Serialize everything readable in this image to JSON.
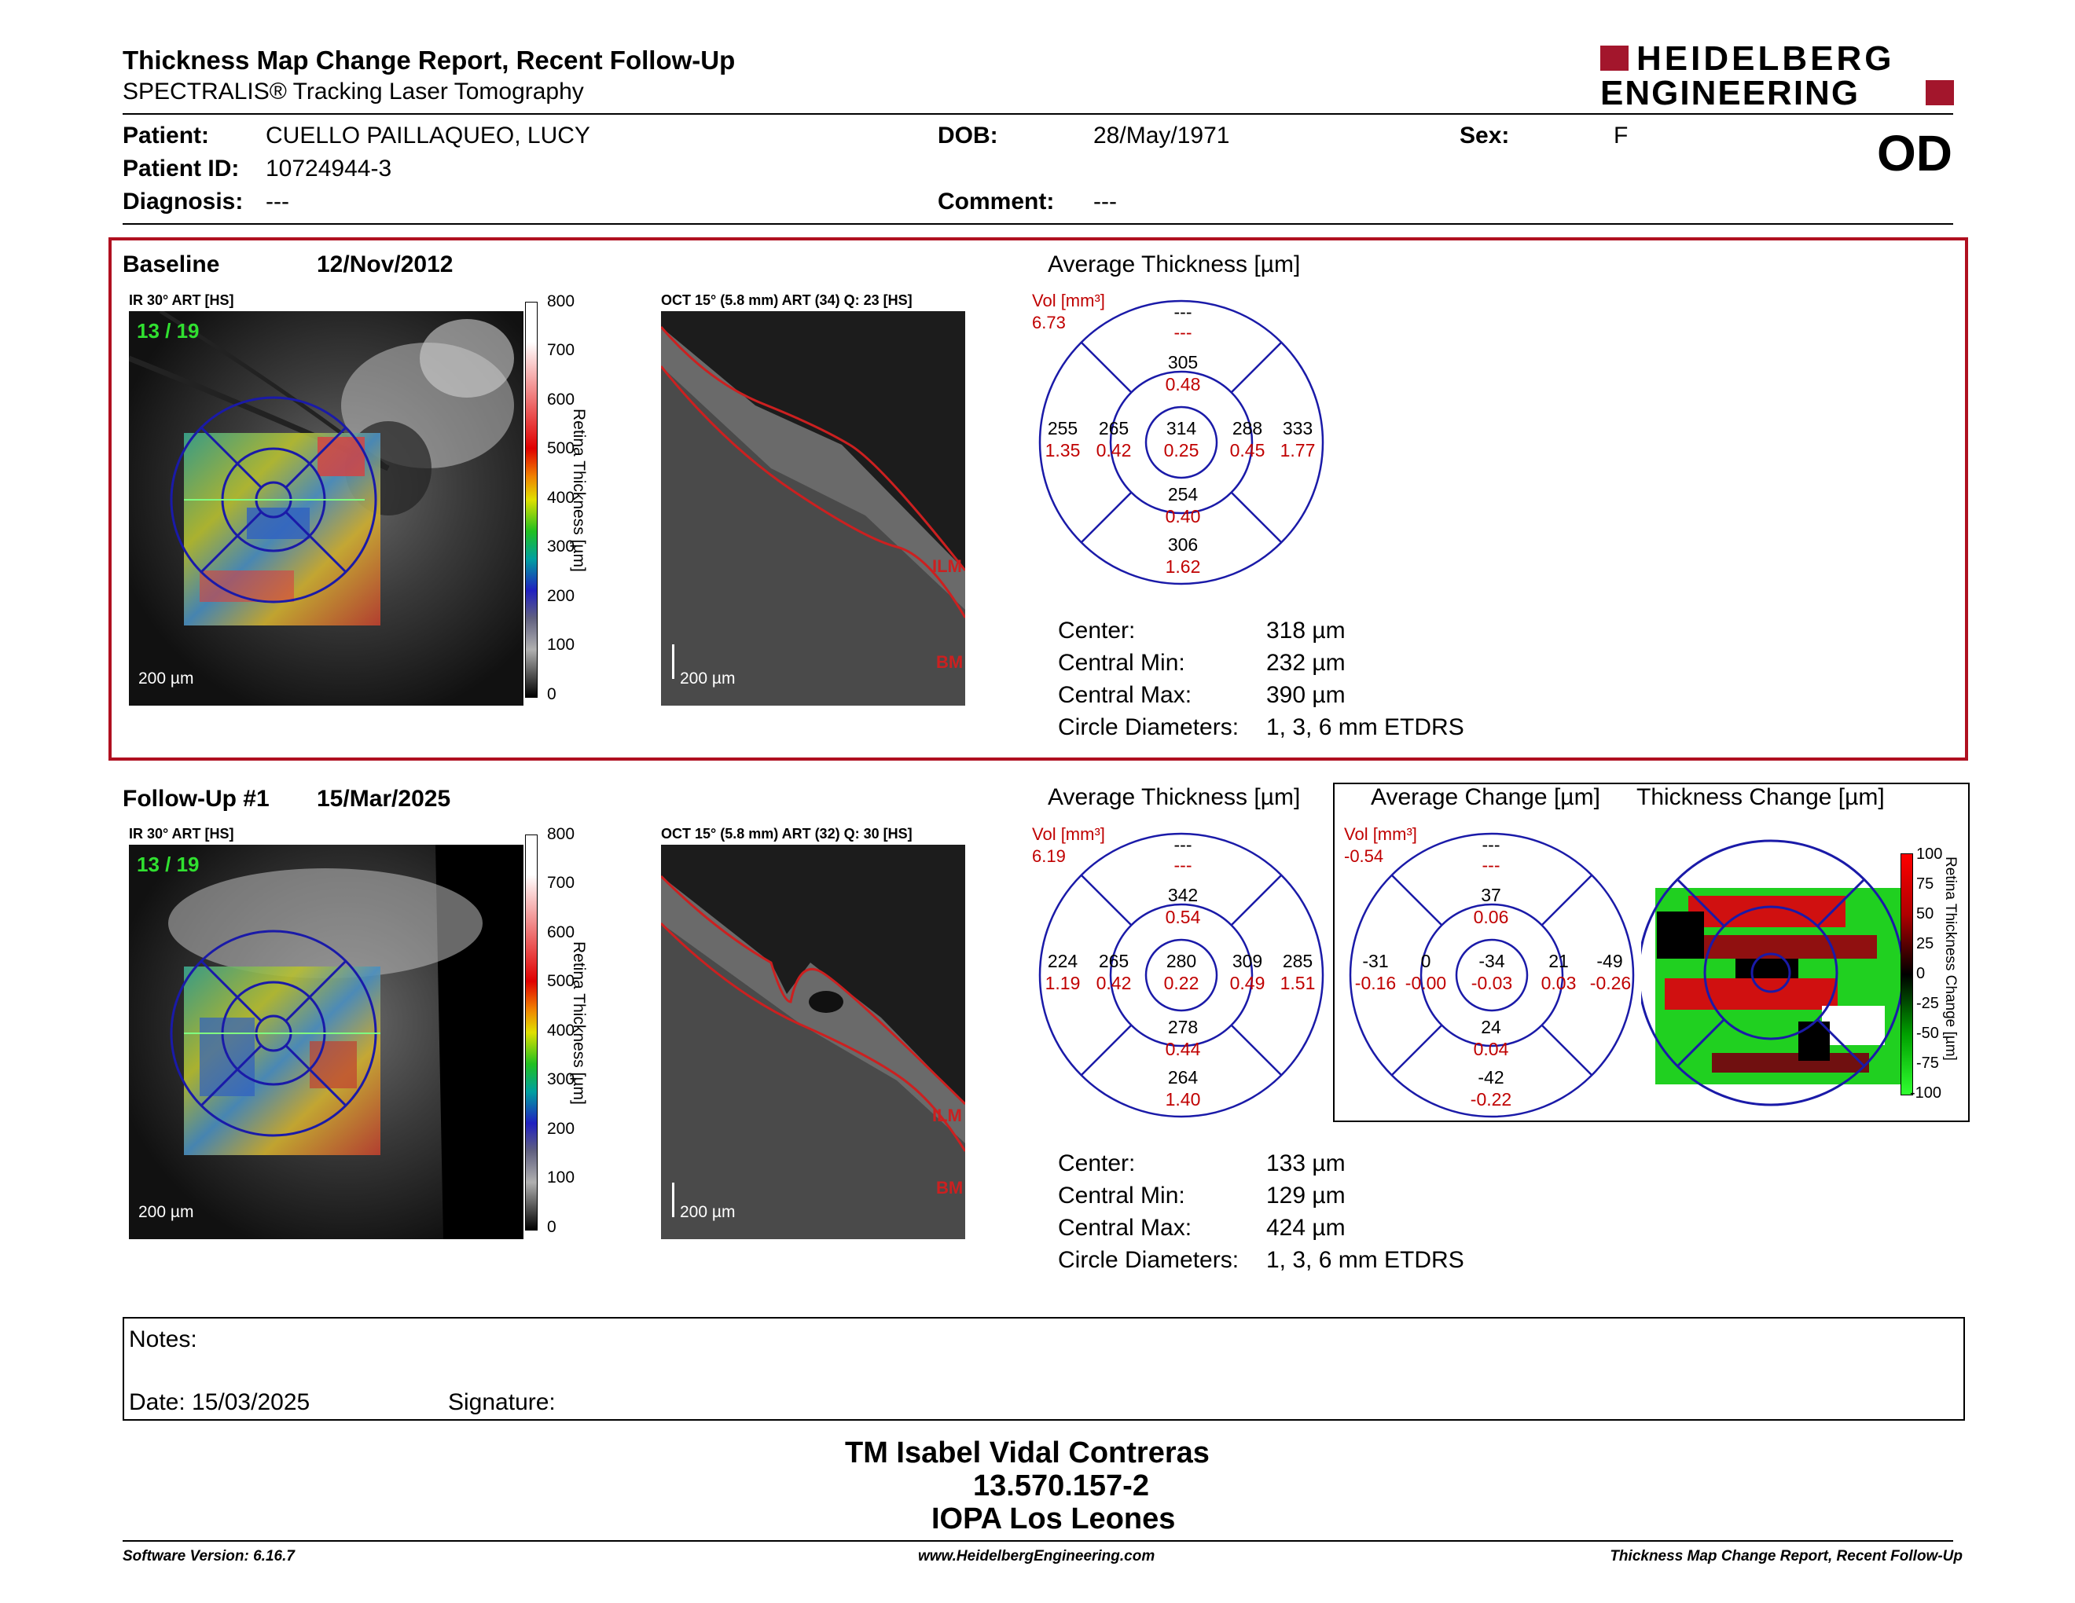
{
  "header": {
    "title": "Thickness Map Change Report, Recent Follow-Up",
    "subtitle": "SPECTRALIS® Tracking Laser Tomography",
    "logo_line1": "HEIDELBERG",
    "logo_line2": "ENGINEERING",
    "eye": "OD"
  },
  "patient": {
    "patient_label": "Patient:",
    "patient_value": "CUELLO PAILLAQUEO, LUCY",
    "id_label": "Patient ID:",
    "id_value": "10724944-3",
    "diag_label": "Diagnosis:",
    "diag_value": "---",
    "dob_label": "DOB:",
    "dob_value": "28/May/1971",
    "comment_label": "Comment:",
    "comment_value": "---",
    "sex_label": "Sex:",
    "sex_value": "F"
  },
  "baseline": {
    "label": "Baseline",
    "date": "12/Nov/2012",
    "ir_title": "IR 30° ART [HS]",
    "ir_counter": "13 / 19",
    "ir_scale": "200 µm",
    "oct_title": "OCT 15° (5.8 mm) ART (34) Q: 23 [HS]",
    "oct_scale": "200 µm",
    "avg_title": "Average Thickness [µm]",
    "vol_label": "Vol [mm³]",
    "vol_value": "6.73",
    "etdrs": {
      "top_outer": [
        "---",
        "---"
      ],
      "top_inner": [
        "305",
        "0.48"
      ],
      "left_outer": [
        "255",
        "1.35"
      ],
      "left_inner": [
        "265",
        "0.42"
      ],
      "center": [
        "314",
        "0.25"
      ],
      "right_inner": [
        "288",
        "0.45"
      ],
      "right_outer": [
        "333",
        "1.77"
      ],
      "bottom_inner": [
        "254",
        "0.40"
      ],
      "bottom_outer": [
        "306",
        "1.62"
      ]
    },
    "stats": [
      {
        "label": "Center:",
        "value": "318 µm"
      },
      {
        "label": "Central Min:",
        "value": "232 µm"
      },
      {
        "label": "Central Max:",
        "value": "390 µm"
      },
      {
        "label": "Circle Diameters:",
        "value": "1, 3, 6 mm ETDRS"
      }
    ]
  },
  "followup": {
    "label": "Follow-Up #1",
    "date": "15/Mar/2025",
    "ir_title": "IR 30° ART [HS]",
    "ir_counter": "13 / 19",
    "ir_scale": "200 µm",
    "oct_title": "OCT 15° (5.8 mm) ART (32) Q: 30 [HS]",
    "oct_scale": "200 µm",
    "avg_title": "Average Thickness [µm]",
    "vol_label": "Vol [mm³]",
    "vol_value": "6.19",
    "etdrs": {
      "top_outer": [
        "---",
        "---"
      ],
      "top_inner": [
        "342",
        "0.54"
      ],
      "left_outer": [
        "224",
        "1.19"
      ],
      "left_inner": [
        "265",
        "0.42"
      ],
      "center": [
        "280",
        "0.22"
      ],
      "right_inner": [
        "309",
        "0.49"
      ],
      "right_outer": [
        "285",
        "1.51"
      ],
      "bottom_inner": [
        "278",
        "0.44"
      ],
      "bottom_outer": [
        "264",
        "1.40"
      ]
    },
    "change_title": "Average Change [µm]",
    "change_vol_label": "Vol [mm³]",
    "change_vol_value": "-0.54",
    "change": {
      "top_outer": [
        "---",
        "---"
      ],
      "top_inner": [
        "37",
        "0.06"
      ],
      "left_outer": [
        "-31",
        "-0.16"
      ],
      "left_inner": [
        "0",
        "-0.00"
      ],
      "center": [
        "-34",
        "-0.03"
      ],
      "right_inner": [
        "21",
        "0.03"
      ],
      "right_outer": [
        "-49",
        "-0.26"
      ],
      "bottom_inner": [
        "24",
        "0.04"
      ],
      "bottom_outer": [
        "-42",
        "-0.22"
      ]
    },
    "thickchange_title": "Thickness Change [µm]",
    "stats": [
      {
        "label": "Center:",
        "value": "133 µm"
      },
      {
        "label": "Central Min:",
        "value": "129 µm"
      },
      {
        "label": "Central Max:",
        "value": "424 µm"
      },
      {
        "label": "Circle Diameters:",
        "value": "1, 3, 6 mm ETDRS"
      }
    ]
  },
  "colorbar": {
    "ticks": [
      "800",
      "700",
      "600",
      "500",
      "400",
      "300",
      "200",
      "100",
      "0"
    ],
    "axis_label": "Retina Thickness [µm]"
  },
  "change_colorbar": {
    "ticks": [
      "100",
      "75",
      "50",
      "25",
      "0",
      "-25",
      "-50",
      "-75",
      "-100"
    ],
    "axis_label": "Retina Thickness Change [µm]"
  },
  "layer_labels": {
    "ilm": "ILM",
    "bm": "BM"
  },
  "notes": {
    "notes_label": "Notes:",
    "date_label": "Date: 15/03/2025",
    "signature_label": "Signature:"
  },
  "stamp": {
    "line1": "TM Isabel Vidal Contreras",
    "line2": "13.570.157-2",
    "line3": "IOPA Los Leones"
  },
  "footer": {
    "left": "Software Version: 6.16.7",
    "center": "www.HeidelbergEngineering.com",
    "right": "Thickness Map Change Report, Recent Follow-Up"
  },
  "colors": {
    "accent_red": "#b01020",
    "etdrs_blue": "#1a1aa8",
    "value_red": "#c00000"
  }
}
